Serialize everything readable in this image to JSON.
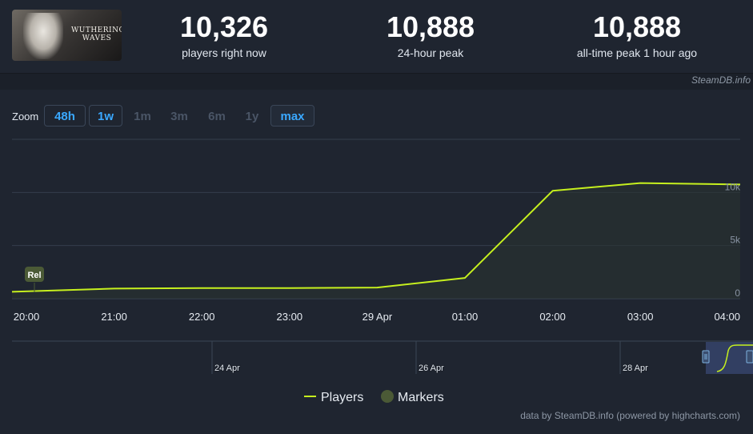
{
  "header": {
    "game_logo_text": "WUTHERING WAVES",
    "stats": [
      {
        "value": "10,326",
        "label": "players right now"
      },
      {
        "value": "10,888",
        "label": "24-hour peak"
      },
      {
        "value": "10,888",
        "label": "all-time peak 1 hour ago"
      }
    ],
    "credit": "SteamDB.info"
  },
  "zoom": {
    "label": "Zoom",
    "buttons": [
      {
        "label": "48h",
        "state": "enabled"
      },
      {
        "label": "1w",
        "state": "enabled"
      },
      {
        "label": "1m",
        "state": "disabled"
      },
      {
        "label": "3m",
        "state": "disabled"
      },
      {
        "label": "6m",
        "state": "disabled"
      },
      {
        "label": "1y",
        "state": "disabled"
      },
      {
        "label": "max",
        "state": "active"
      }
    ]
  },
  "chart_data": {
    "type": "line",
    "x_ticks": [
      "20:00",
      "21:00",
      "22:00",
      "23:00",
      "29 Apr",
      "01:00",
      "02:00",
      "03:00",
      "04:00"
    ],
    "y_ticks": [
      "0",
      "5k",
      "10k"
    ],
    "ylim": [
      0,
      15000
    ],
    "grid": true,
    "series": [
      {
        "name": "Players",
        "color": "#c6f01e",
        "points": [
          {
            "x": "19:50",
            "y": 650
          },
          {
            "x": "21:00",
            "y": 950
          },
          {
            "x": "22:00",
            "y": 1000
          },
          {
            "x": "23:00",
            "y": 1000
          },
          {
            "x": "29 Apr 00:00",
            "y": 1050
          },
          {
            "x": "01:00",
            "y": 1950
          },
          {
            "x": "02:00",
            "y": 10150
          },
          {
            "x": "03:00",
            "y": 10888
          },
          {
            "x": "04:00",
            "y": 10750
          }
        ]
      }
    ],
    "markers": [
      {
        "label": "Rel",
        "x": "20:00"
      }
    ],
    "legend": [
      {
        "name": "Players",
        "color": "#c6f01e",
        "symbol": "line"
      },
      {
        "name": "Markers",
        "color": "#4b5a36",
        "symbol": "circle"
      }
    ],
    "legend_position": "bottom"
  },
  "navigator": {
    "labels": [
      "24 Apr",
      "26 Apr",
      "28 Apr"
    ]
  },
  "footer_credit": "data by SteamDB.info (powered by highcharts.com)"
}
